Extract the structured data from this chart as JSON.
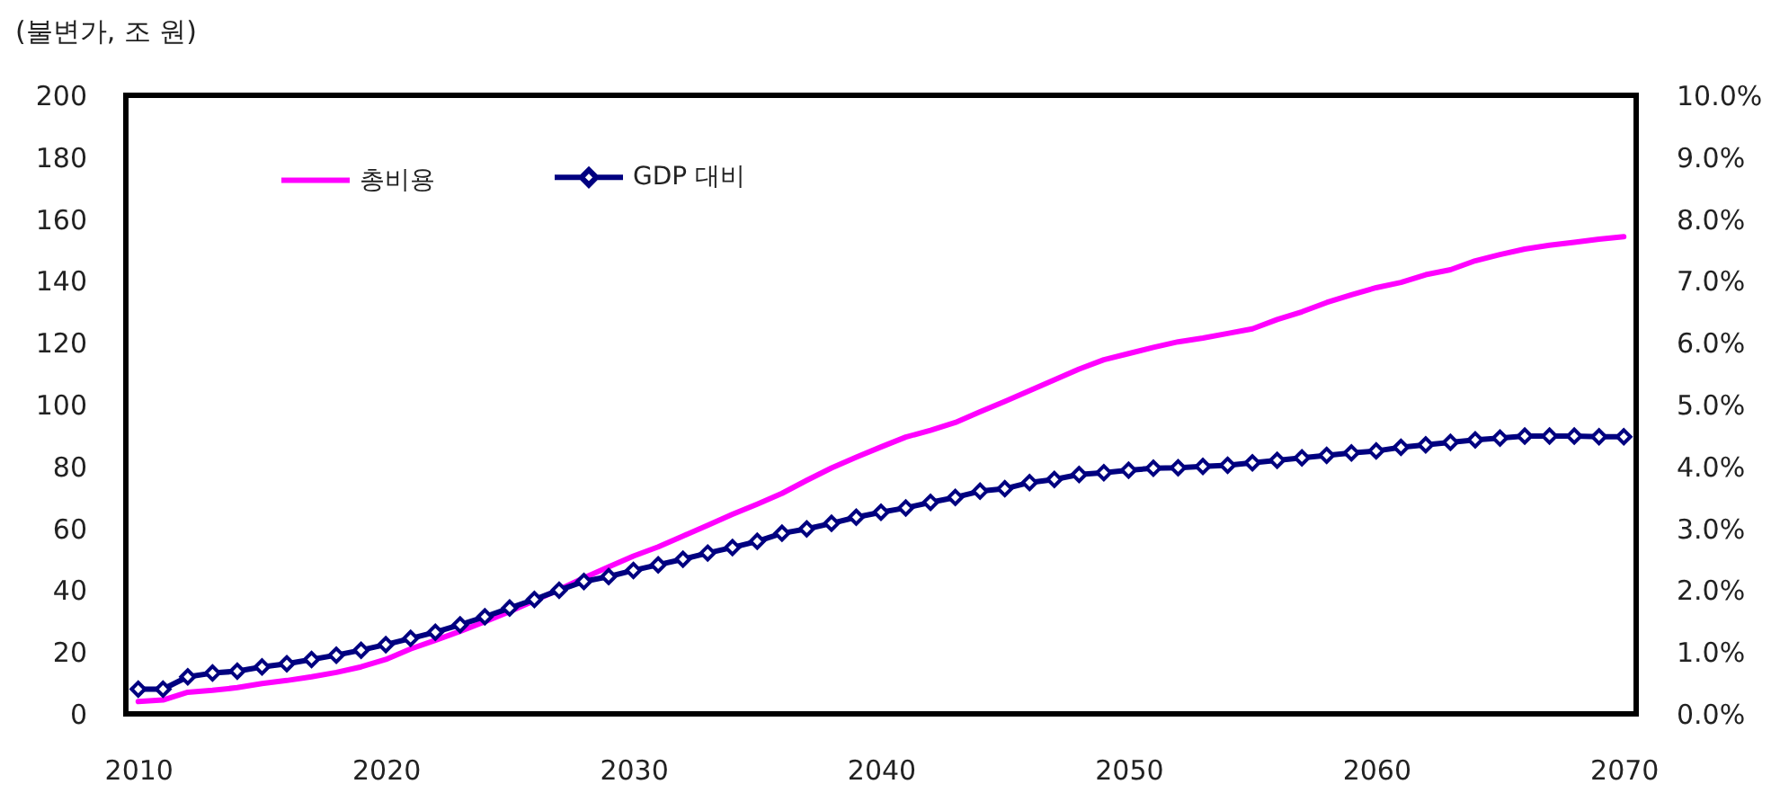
{
  "chart_data": {
    "type": "line",
    "ylabel": "(불변가, 조 원)",
    "legend": "top left",
    "x": [
      2010,
      2011,
      2012,
      2013,
      2014,
      2015,
      2016,
      2017,
      2018,
      2019,
      2020,
      2021,
      2022,
      2023,
      2024,
      2025,
      2026,
      2027,
      2028,
      2029,
      2030,
      2031,
      2032,
      2033,
      2034,
      2035,
      2036,
      2037,
      2038,
      2039,
      2040,
      2041,
      2042,
      2043,
      2044,
      2045,
      2046,
      2047,
      2048,
      2049,
      2050,
      2051,
      2052,
      2053,
      2054,
      2055,
      2056,
      2057,
      2058,
      2059,
      2060,
      2061,
      2062,
      2063,
      2064,
      2065,
      2066,
      2067,
      2068,
      2069,
      2070
    ],
    "xlim": [
      2009.5,
      2070.5
    ],
    "xticks": [
      2010,
      2020,
      2030,
      2040,
      2050,
      2060,
      2070
    ],
    "ylim": [
      0,
      200
    ],
    "yticks": [
      0,
      20,
      40,
      60,
      80,
      100,
      120,
      140,
      160,
      180,
      200
    ],
    "y2lim": [
      0,
      10
    ],
    "y2ticks": [
      {
        "value": 0,
        "label": "0.0%"
      },
      {
        "value": 1,
        "label": "1.0%"
      },
      {
        "value": 2,
        "label": "2.0%"
      },
      {
        "value": 3,
        "label": "3.0%"
      },
      {
        "value": 4,
        "label": "4.0%"
      },
      {
        "value": 5,
        "label": "5.0%"
      },
      {
        "value": 6,
        "label": "6.0%"
      },
      {
        "value": 7,
        "label": "7.0%"
      },
      {
        "value": 8,
        "label": "8.0%"
      },
      {
        "value": 9,
        "label": "9.0%"
      },
      {
        "value": 10,
        "label": "10.0%"
      }
    ],
    "series": [
      {
        "name": "총비용",
        "color": "#ff00ff",
        "values": [
          4,
          4.5,
          7,
          7.6,
          8.5,
          9.8,
          10.8,
          12,
          13.4,
          15.2,
          17.6,
          21,
          23.8,
          26.7,
          29.8,
          33.1,
          36.6,
          40.2,
          44,
          47.5,
          51,
          54,
          57.5,
          61,
          64.5,
          67.8,
          71.3,
          75.5,
          79.5,
          83,
          86.3,
          89.5,
          91.7,
          94.2,
          97.7,
          101,
          104.5,
          108,
          111.5,
          114.5,
          116.5,
          118.5,
          120.3,
          121.5,
          123,
          124.5,
          127.5,
          130,
          133,
          135.5,
          137.8,
          139.5,
          142,
          143.6,
          146.5,
          148.5,
          150.3,
          151.5,
          152.5,
          153.5,
          154.3
        ]
      },
      {
        "name": "GDP 대비",
        "color": "#000080",
        "axis": "y2",
        "marker": "diamond",
        "values": [
          0.4,
          0.4,
          0.6,
          0.66,
          0.69,
          0.76,
          0.81,
          0.88,
          0.95,
          1.03,
          1.12,
          1.22,
          1.32,
          1.44,
          1.57,
          1.71,
          1.85,
          2.0,
          2.14,
          2.22,
          2.32,
          2.41,
          2.5,
          2.6,
          2.69,
          2.79,
          2.92,
          2.99,
          3.08,
          3.18,
          3.26,
          3.33,
          3.42,
          3.5,
          3.6,
          3.64,
          3.74,
          3.79,
          3.87,
          3.9,
          3.94,
          3.97,
          3.98,
          4.0,
          4.02,
          4.06,
          4.1,
          4.14,
          4.18,
          4.22,
          4.25,
          4.31,
          4.35,
          4.39,
          4.43,
          4.46,
          4.49,
          4.49,
          4.49,
          4.48,
          4.48
        ]
      }
    ]
  }
}
